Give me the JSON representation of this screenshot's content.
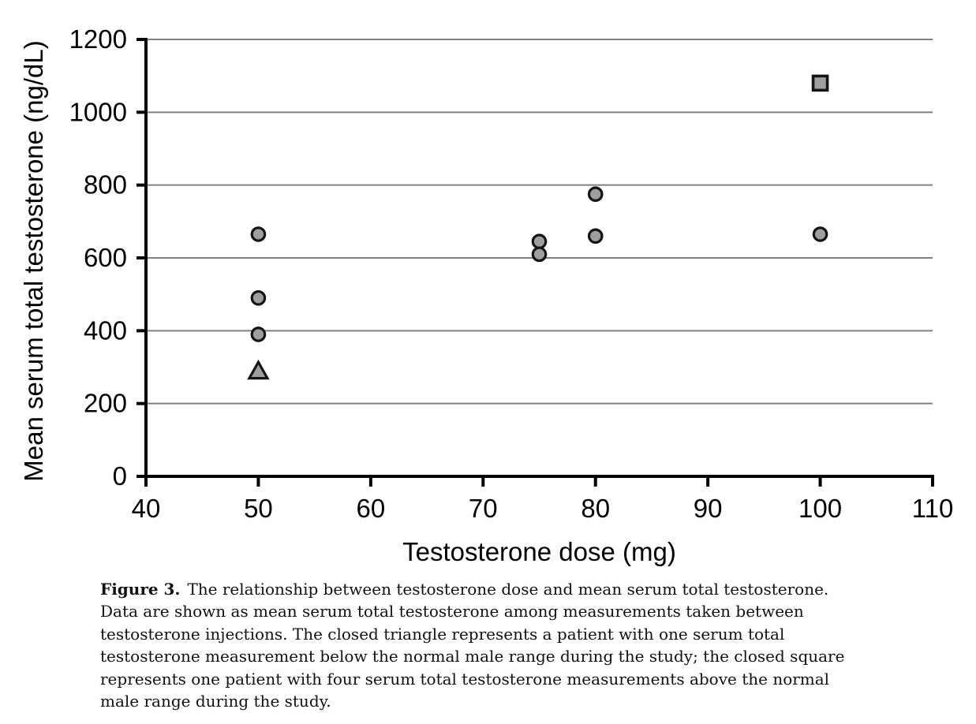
{
  "chart_data": {
    "type": "scatter",
    "title": "",
    "xlabel": "Testosterone dose (mg)",
    "ylabel": "Mean serum total testosterone (ng/dL)",
    "xlim": [
      40,
      110
    ],
    "ylim": [
      0,
      1200
    ],
    "xticks": [
      40,
      50,
      60,
      70,
      80,
      90,
      100,
      110
    ],
    "yticks": [
      0,
      200,
      400,
      600,
      800,
      1000,
      1200
    ],
    "grid": "horizontal-gridlines-on",
    "legend": "none",
    "series": [
      {
        "name": "patients-mean-serum-total-testosterone",
        "marker": "circle",
        "points": [
          [
            50,
            665
          ],
          [
            50,
            490
          ],
          [
            50,
            390
          ],
          [
            75,
            645
          ],
          [
            75,
            610
          ],
          [
            80,
            775
          ],
          [
            80,
            660
          ],
          [
            100,
            665
          ]
        ]
      },
      {
        "name": "patient-one-measurement-below-normal-range",
        "marker": "triangle",
        "points": [
          [
            50,
            290
          ]
        ]
      },
      {
        "name": "patient-four-measurements-above-normal-range",
        "marker": "square",
        "points": [
          [
            100,
            1080
          ]
        ]
      }
    ],
    "colors": {
      "marker_fill": "#9e9e9e",
      "marker_stroke": "#141414",
      "gridline": "#808080",
      "axis": "#000000",
      "text": "#000000"
    }
  },
  "caption": {
    "label": "Figure 3.",
    "line1": "The relationship between testosterone dose and mean serum total testosterone.",
    "line2": "Data are shown as mean serum total testosterone among measurements taken between",
    "line3": "testosterone injections. The closed triangle represents a patient with one serum total",
    "line4": "testosterone measurement below the normal male range during the study; the closed square",
    "line5": "represents one patient with four serum total testosterone measurements above the normal",
    "line6": "male range during the study."
  }
}
